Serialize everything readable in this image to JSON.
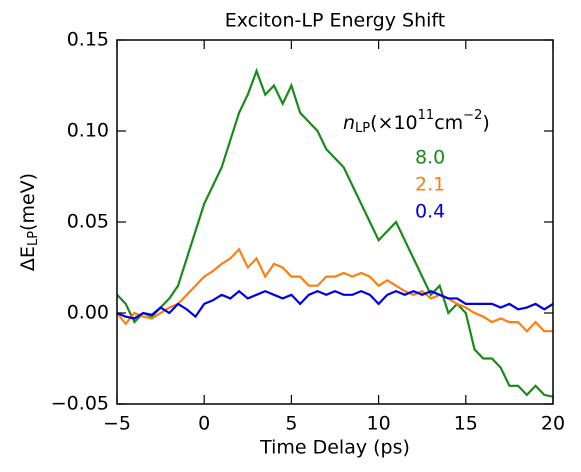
{
  "chart_data": {
    "type": "line",
    "title": "Exciton-LP Energy Shift",
    "xlabel": "Time Delay (ps)",
    "ylabel": [
      "ΔE",
      "LP",
      "(meV)"
    ],
    "legend_title": [
      "n",
      "LP",
      "(×10",
      "11",
      "cm",
      "−2",
      ")"
    ],
    "legend": "upper right",
    "x": [
      -5,
      -4.5,
      -4,
      -3.5,
      -3,
      -2.5,
      -2,
      -1.5,
      -1,
      -0.5,
      0,
      0.5,
      1,
      1.5,
      2,
      2.5,
      3,
      3.5,
      4,
      4.5,
      5,
      5.5,
      6,
      6.5,
      7,
      7.5,
      8,
      8.5,
      9,
      9.5,
      10,
      10.5,
      11,
      11.5,
      12,
      12.5,
      13,
      13.5,
      14,
      14.5,
      15,
      15.5,
      16,
      16.5,
      17,
      17.5,
      18,
      18.5,
      19,
      19.5,
      20
    ],
    "series": [
      {
        "name": "8.0",
        "color": "#1a8a1a",
        "values": [
          0.01,
          0.005,
          -0.005,
          0,
          -0.002,
          0.003,
          0.008,
          0.015,
          0.03,
          0.045,
          0.06,
          0.07,
          0.08,
          0.095,
          0.11,
          0.12,
          0.133,
          0.12,
          0.125,
          0.115,
          0.125,
          0.11,
          0.105,
          0.1,
          0.09,
          0.085,
          0.08,
          0.07,
          0.06,
          0.05,
          0.04,
          0.045,
          0.05,
          0.04,
          0.03,
          0.02,
          0.01,
          0.015,
          0,
          0.005,
          0,
          -0.02,
          -0.025,
          -0.025,
          -0.03,
          -0.04,
          -0.04,
          -0.045,
          -0.04,
          -0.045,
          -0.046
        ]
      },
      {
        "name": "2.1",
        "color": "#ff7f0e",
        "values": [
          0,
          -0.006,
          0,
          -0.002,
          -0.003,
          0,
          0.003,
          0.005,
          0.01,
          0.015,
          0.02,
          0.023,
          0.027,
          0.03,
          0.035,
          0.025,
          0.03,
          0.02,
          0.027,
          0.025,
          0.02,
          0.02,
          0.015,
          0.015,
          0.02,
          0.02,
          0.022,
          0.02,
          0.022,
          0.02,
          0.015,
          0.018,
          0.015,
          0.012,
          0.01,
          0.012,
          0.008,
          0.01,
          0.008,
          0.005,
          0.003,
          0,
          -0.002,
          -0.005,
          -0.003,
          -0.005,
          -0.005,
          -0.01,
          -0.005,
          -0.01,
          -0.01
        ]
      },
      {
        "name": "0.4",
        "color": "#0000e6",
        "values": [
          0,
          -0.002,
          -0.003,
          0,
          -0.001,
          0.003,
          0,
          0.005,
          0.002,
          -0.002,
          0.005,
          0.007,
          0.01,
          0.008,
          0.012,
          0.008,
          0.01,
          0.012,
          0.01,
          0.008,
          0.01,
          0.005,
          0.01,
          0.012,
          0.01,
          0.012,
          0.01,
          0.01,
          0.012,
          0.01,
          0.005,
          0.01,
          0.012,
          0.01,
          0.012,
          0.01,
          0.012,
          0.01,
          0.008,
          0.008,
          0.005,
          0.005,
          0.005,
          0.005,
          0.003,
          0.005,
          0.002,
          0.003,
          0.005,
          0.002,
          0.005
        ]
      }
    ],
    "xlim": [
      -5,
      20
    ],
    "xticks": [
      {
        "value": -5,
        "label": "−5"
      },
      0,
      5,
      10,
      15,
      20
    ],
    "ylim": [
      -0.05,
      0.15
    ],
    "yticks": [
      {
        "value": -0.05,
        "label": "−0.05"
      },
      {
        "value": 0,
        "label": "0.00"
      },
      0.05,
      {
        "value": 0.1,
        "label": "0.10"
      },
      0.15
    ]
  }
}
